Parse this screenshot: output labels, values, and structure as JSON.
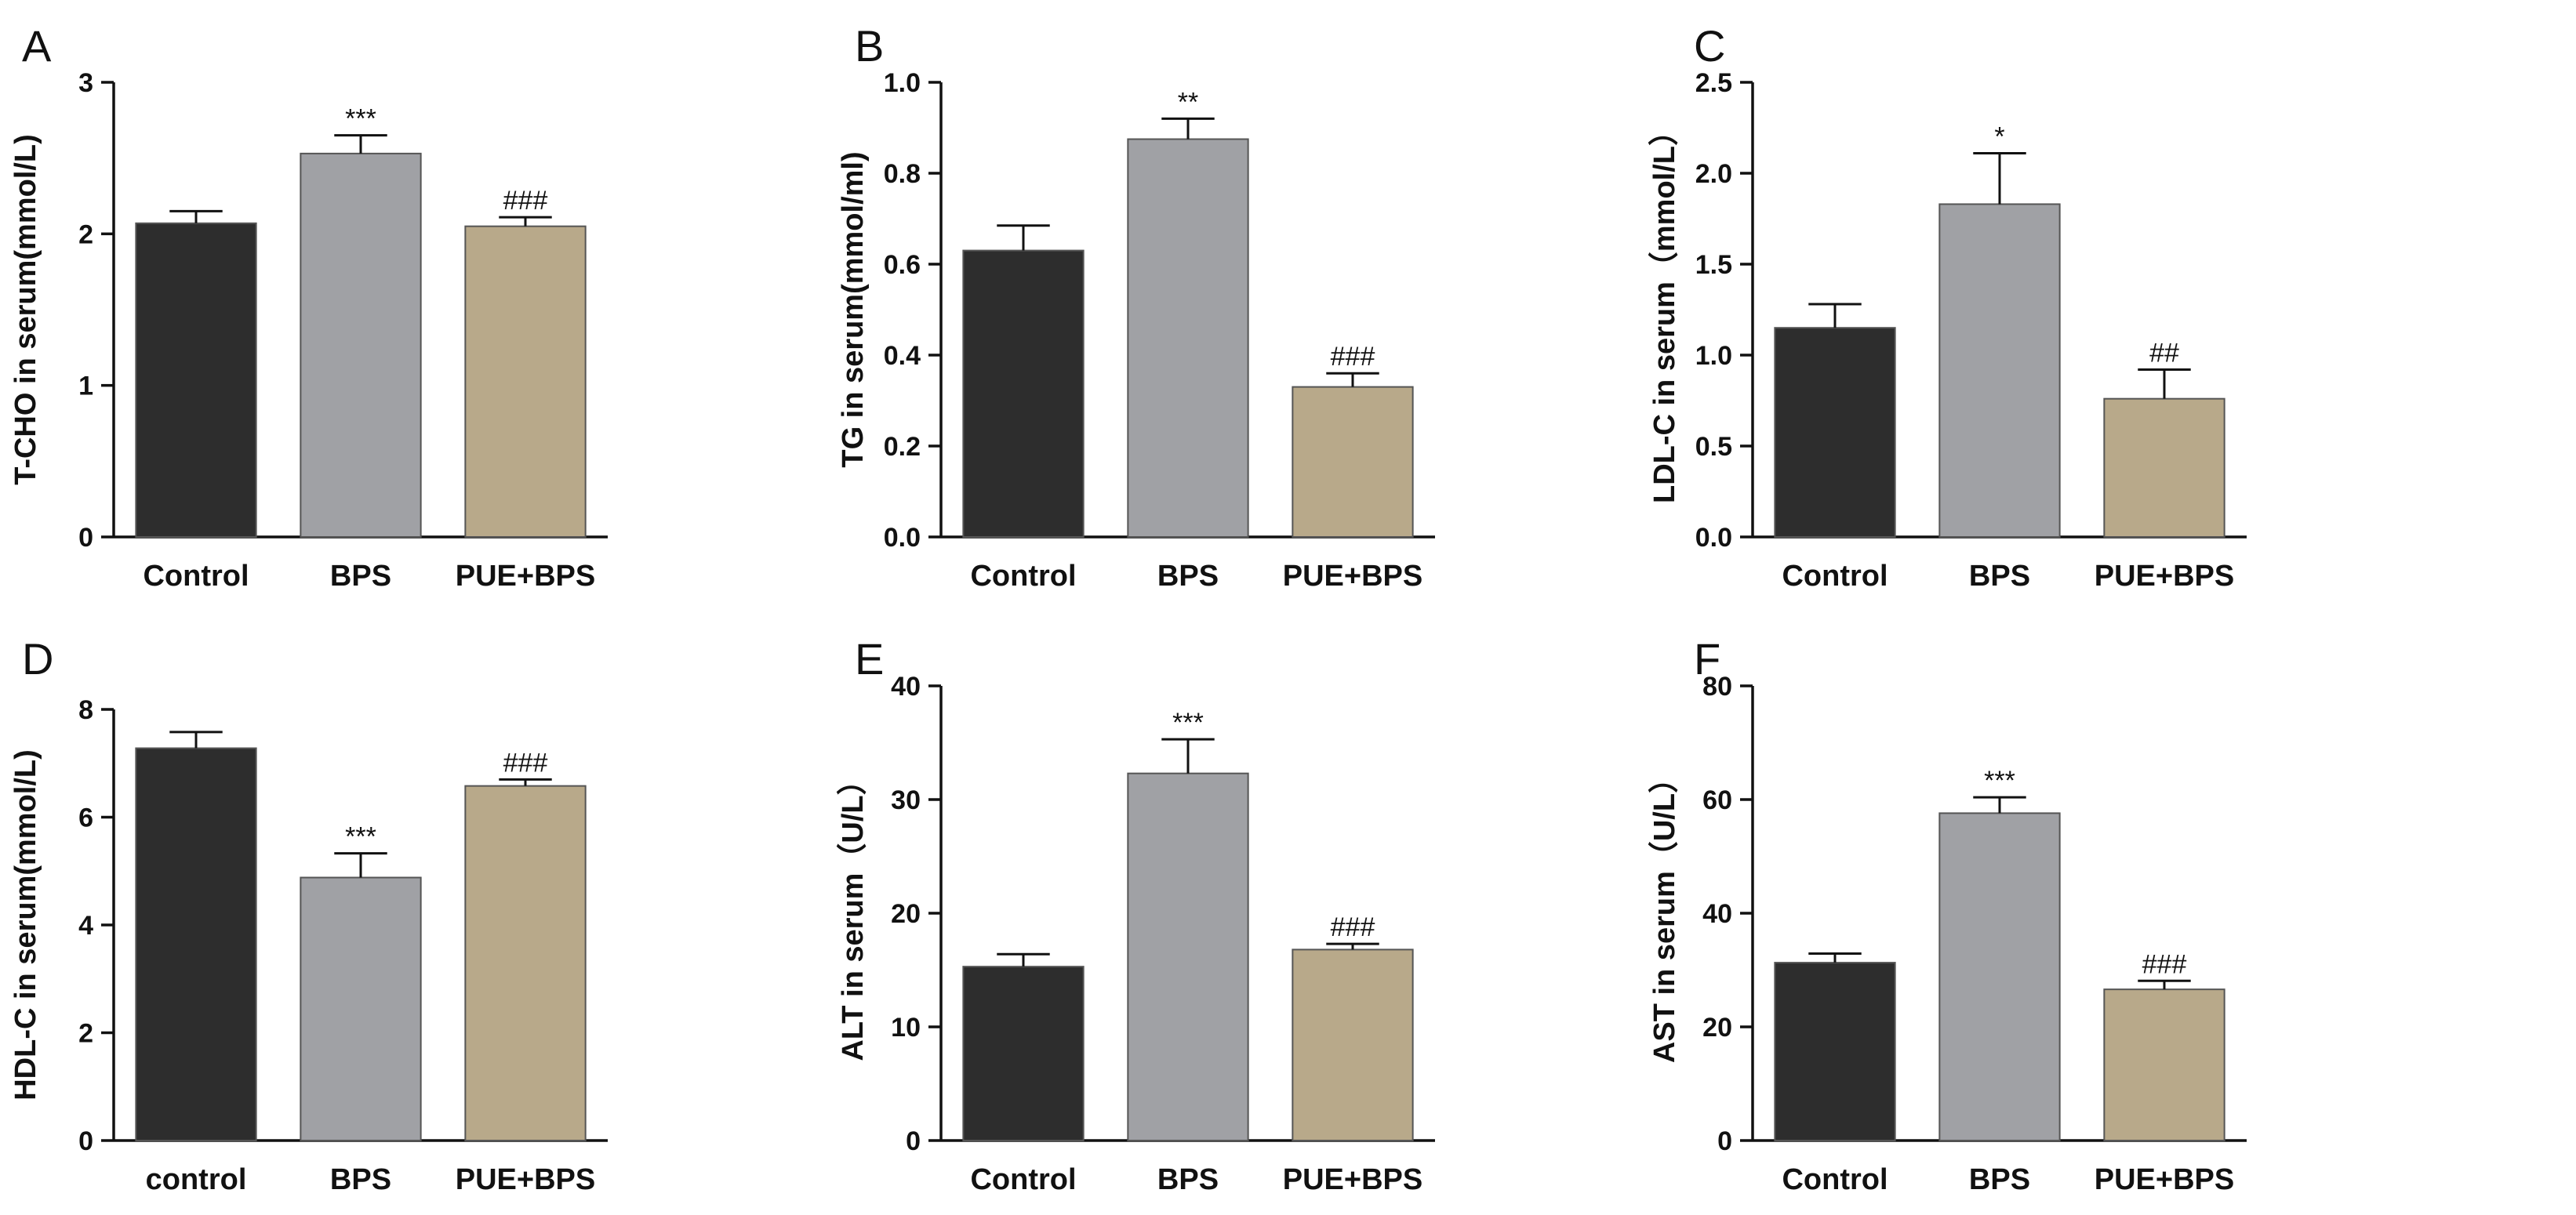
{
  "chart_data": [
    {
      "type": "bar",
      "panel": "A",
      "ylabel": "T-CHO in serum(mmol/L)",
      "ylim": [
        0,
        3
      ],
      "yticks": [
        "0",
        "1",
        "2",
        "3"
      ],
      "categories": [
        "Control",
        "BPS",
        "PUE+BPS"
      ],
      "values": [
        2.07,
        2.53,
        2.05
      ],
      "errors": [
        0.08,
        0.12,
        0.06
      ],
      "significance": [
        "",
        "***",
        "###"
      ]
    },
    {
      "type": "bar",
      "panel": "B",
      "ylabel": "TG in serum(mmol/ml)",
      "ylim": [
        0,
        1.0
      ],
      "yticks": [
        "0.0",
        "0.2",
        "0.4",
        "0.6",
        "0.8",
        "1.0"
      ],
      "categories": [
        "Control",
        "BPS",
        "PUE+BPS"
      ],
      "values": [
        0.63,
        0.875,
        0.33
      ],
      "errors": [
        0.055,
        0.045,
        0.03
      ],
      "significance": [
        "",
        "**",
        "###"
      ]
    },
    {
      "type": "bar",
      "panel": "C",
      "ylabel": "LDL-C in serum（mmol/L）",
      "ylim": [
        0,
        2.5
      ],
      "yticks": [
        "0.0",
        "0.5",
        "1.0",
        "1.5",
        "2.0",
        "2.5"
      ],
      "categories": [
        "Control",
        "BPS",
        "PUE+BPS"
      ],
      "values": [
        1.15,
        1.83,
        0.76
      ],
      "errors": [
        0.13,
        0.28,
        0.16
      ],
      "significance": [
        "",
        "*",
        "##"
      ]
    },
    {
      "type": "bar",
      "panel": "D",
      "ylabel": "HDL-C in serum(mmol/L)",
      "ylim": [
        0,
        8
      ],
      "yticks": [
        "0",
        "2",
        "4",
        "6",
        "8"
      ],
      "categories": [
        "control",
        "BPS",
        "PUE+BPS"
      ],
      "values": [
        7.28,
        4.88,
        6.58
      ],
      "errors": [
        0.3,
        0.45,
        0.12
      ],
      "significance": [
        "",
        "***",
        "###"
      ]
    },
    {
      "type": "bar",
      "panel": "E",
      "ylabel": "ALT in serum（U/L）",
      "ylim": [
        0,
        40
      ],
      "yticks": [
        "0",
        "10",
        "20",
        "30",
        "40"
      ],
      "categories": [
        "Control",
        "BPS",
        "PUE+BPS"
      ],
      "values": [
        15.3,
        32.3,
        16.8
      ],
      "errors": [
        1.1,
        3.0,
        0.5
      ],
      "significance": [
        "",
        "***",
        "###"
      ]
    },
    {
      "type": "bar",
      "panel": "F",
      "ylabel": "AST  in serum（U/L）",
      "ylim": [
        0,
        80
      ],
      "yticks": [
        "0",
        "20",
        "40",
        "60",
        "80"
      ],
      "categories": [
        "Control",
        "BPS",
        "PUE+BPS"
      ],
      "values": [
        31.3,
        57.6,
        26.6
      ],
      "errors": [
        1.6,
        2.8,
        1.5
      ],
      "significance": [
        "",
        "***",
        "###"
      ]
    }
  ],
  "colors": {
    "bars": [
      "#2d2d2d",
      "#a0a1a5",
      "#b8a98a"
    ],
    "axis": "#111111"
  }
}
